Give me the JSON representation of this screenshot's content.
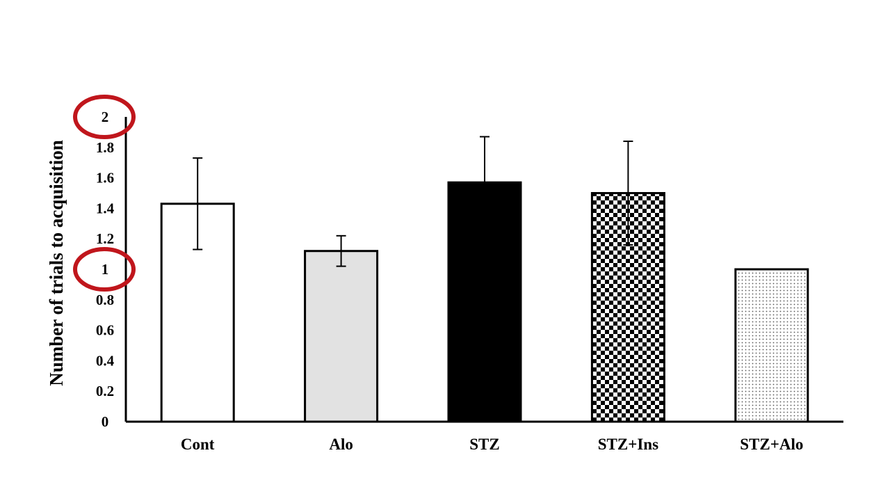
{
  "chart_data": {
    "type": "bar",
    "title": "",
    "xlabel": "",
    "ylabel": "Number of trials to acquisition",
    "ylim": [
      0,
      2
    ],
    "yticks": [
      "0",
      "0.2",
      "0.4",
      "0.6",
      "0.8",
      "1",
      "1.2",
      "1.4",
      "1.6",
      "1.8",
      "2"
    ],
    "categories": [
      "Cont",
      "Alo",
      "STZ",
      "STZ+Ins",
      "STZ+Alo"
    ],
    "values": [
      1.43,
      1.12,
      1.57,
      1.5,
      1.0
    ],
    "error": [
      0.3,
      0.1,
      0.3,
      0.34,
      0
    ],
    "fills": [
      "white",
      "light-gray",
      "black",
      "checkerboard",
      "dotted"
    ],
    "grid": false,
    "legend": "none",
    "annotations": [
      {
        "type": "circle",
        "target_tick": "2",
        "color": "#c0161c"
      },
      {
        "type": "circle",
        "target_tick": "1",
        "color": "#c0161c"
      }
    ]
  }
}
